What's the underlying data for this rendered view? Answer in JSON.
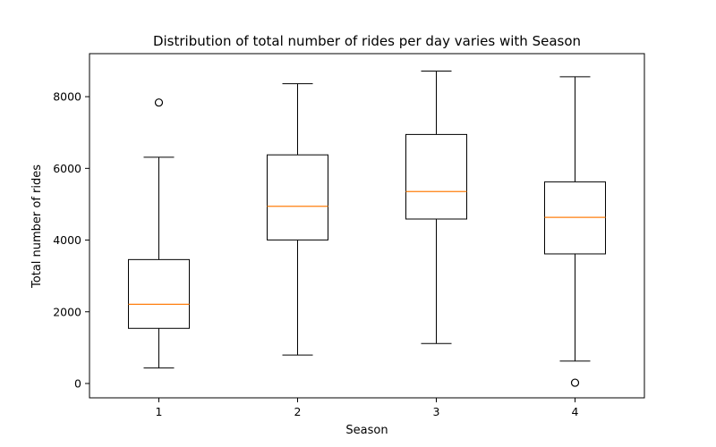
{
  "chart_data": {
    "type": "box",
    "title": "Distribution of total number of rides per day varies with Season",
    "xlabel": "Season",
    "ylabel": "Total number of rides",
    "categories": [
      "1",
      "2",
      "3",
      "4"
    ],
    "ylim": [
      -400,
      9200
    ],
    "yticks": [
      0,
      2000,
      4000,
      6000,
      8000
    ],
    "grid": false,
    "boxes": [
      {
        "category": "1",
        "whisker_low": 431,
        "q1": 1538,
        "median": 2209,
        "q3": 3456,
        "whisker_high": 6312,
        "outliers": [
          7836
        ]
      },
      {
        "category": "2",
        "whisker_low": 795,
        "q1": 4003,
        "median": 4942,
        "q3": 6377,
        "whisker_high": 8362,
        "outliers": []
      },
      {
        "category": "3",
        "whisker_low": 1115,
        "q1": 4587,
        "median": 5354,
        "q3": 6946,
        "whisker_high": 8714,
        "outliers": []
      },
      {
        "category": "4",
        "whisker_low": 627,
        "q1": 3615,
        "median": 4634,
        "q3": 5624,
        "whisker_high": 8555,
        "outliers": [
          22
        ]
      }
    ],
    "colors": {
      "box": "#000000",
      "median": "#ff7f0e",
      "outlier": "#000000"
    }
  }
}
